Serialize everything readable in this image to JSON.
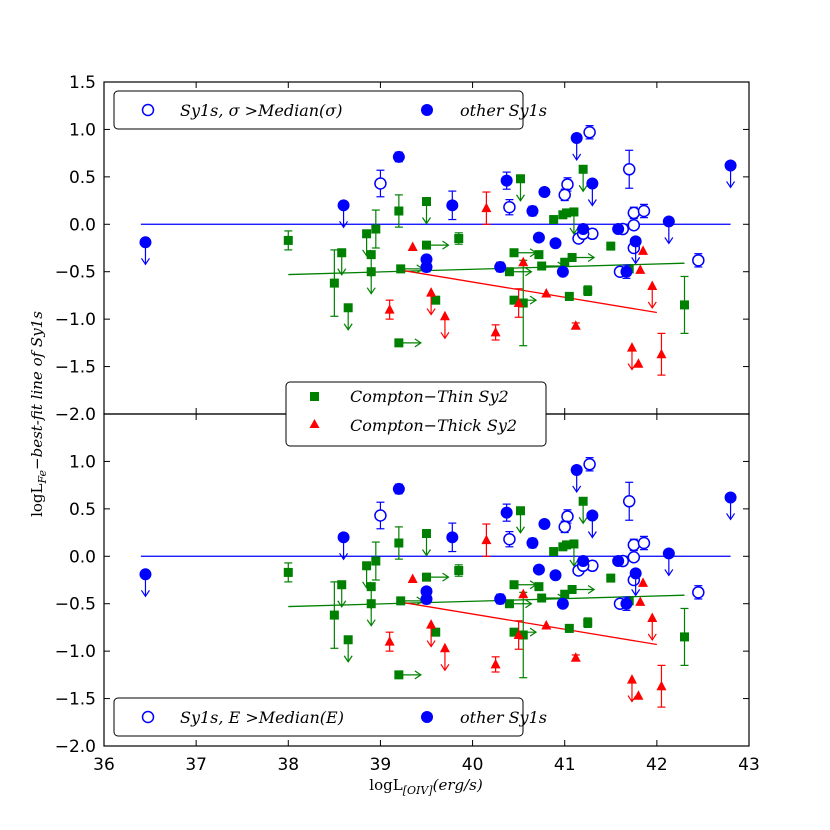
{
  "chart_data": [
    {
      "panel": "top",
      "type": "scatter",
      "xlim": [
        36,
        43
      ],
      "ylim": [
        -2.0,
        1.5
      ],
      "y_ticks": [
        "1.5",
        "1.0",
        "0.5",
        "0.0",
        "−0.5",
        "−1.0",
        "−1.5",
        "−2.0"
      ],
      "y_tick_values": [
        1.5,
        1.0,
        0.5,
        0.0,
        -0.5,
        -1.0,
        -1.5,
        -2.0
      ],
      "legend": [
        {
          "series": "sy1_high",
          "label": "Sy1s, σ >Median(σ)"
        },
        {
          "series": "sy1_other",
          "label": "other Sy1s"
        }
      ],
      "legend_placement": "upper-left",
      "lines": [
        {
          "name": "Sy1 zero line",
          "color": "#0000ff",
          "x": [
            36.4,
            42.8
          ],
          "y": [
            0.0,
            0.0
          ]
        },
        {
          "name": "Compton-Thin fit",
          "color": "#008000",
          "x": [
            38.0,
            42.3
          ],
          "y": [
            -0.53,
            -0.41
          ]
        },
        {
          "name": "Compton-Thick fit",
          "color": "#ff0000",
          "x": [
            39.2,
            42.0
          ],
          "y": [
            -0.48,
            -0.93
          ]
        }
      ],
      "series": {
        "sy1_high": {
          "name": "Sy1s, σ >Median(σ)",
          "marker": "open-circle",
          "color": "#0000ff",
          "points": [
            {
              "x": 39.0,
              "y": 0.43,
              "err": 0.14
            },
            {
              "x": 40.4,
              "y": 0.18,
              "err": 0.08
            },
            {
              "x": 41.03,
              "y": 0.42,
              "err": 0.07
            },
            {
              "x": 41.27,
              "y": 0.97,
              "err": 0.07
            },
            {
              "x": 41.3,
              "y": -0.1,
              "err": 0.05
            },
            {
              "x": 41.15,
              "y": -0.15,
              "err": 0.0
            },
            {
              "x": 41.7,
              "y": 0.58,
              "err": 0.2
            },
            {
              "x": 41.75,
              "y": 0.12,
              "err": 0.06
            },
            {
              "x": 41.86,
              "y": 0.14,
              "err": 0.07
            },
            {
              "x": 41.75,
              "y": -0.25,
              "err": 0.0
            },
            {
              "x": 41.63,
              "y": -0.05,
              "err": 0.0
            },
            {
              "x": 41.0,
              "y": 0.31,
              "err": 0.06
            },
            {
              "x": 42.45,
              "y": -0.38,
              "err": 0.07
            },
            {
              "x": 41.2,
              "y": -0.1,
              "err": 0.0
            },
            {
              "x": 41.75,
              "y": -0.01,
              "err": 0.0
            },
            {
              "x": 41.6,
              "y": -0.5,
              "err": 0.0
            }
          ]
        },
        "sy1_other": {
          "name": "other Sy1s",
          "marker": "filled-circle",
          "color": "#0000ff",
          "points": [
            {
              "x": 36.45,
              "y": -0.19,
              "ul": true
            },
            {
              "x": 38.6,
              "y": 0.2,
              "ul": true
            },
            {
              "x": 39.2,
              "y": 0.71,
              "err": 0.05
            },
            {
              "x": 39.5,
              "y": -0.37,
              "err": 0.0
            },
            {
              "x": 39.5,
              "y": -0.45,
              "err": 0.05
            },
            {
              "x": 39.78,
              "y": 0.2,
              "err": 0.15
            },
            {
              "x": 40.3,
              "y": -0.45,
              "err": 0.05
            },
            {
              "x": 40.37,
              "y": 0.46,
              "err": 0.09
            },
            {
              "x": 40.65,
              "y": 0.14,
              "err": 0.05
            },
            {
              "x": 40.78,
              "y": 0.34,
              "err": 0.0
            },
            {
              "x": 40.72,
              "y": -0.14,
              "err": 0.0
            },
            {
              "x": 40.9,
              "y": -0.2,
              "err": 0.0
            },
            {
              "x": 40.98,
              "y": -0.5,
              "err": 0.0
            },
            {
              "x": 41.13,
              "y": 0.91,
              "ul": true
            },
            {
              "x": 41.2,
              "y": -0.05,
              "err": 0.0
            },
            {
              "x": 41.3,
              "y": 0.43,
              "ul": true
            },
            {
              "x": 41.58,
              "y": -0.05,
              "err": 0.0
            },
            {
              "x": 41.67,
              "y": -0.5,
              "err": 0.07
            },
            {
              "x": 41.77,
              "y": -0.18,
              "ul": true
            },
            {
              "x": 42.13,
              "y": 0.03,
              "ul": true
            },
            {
              "x": 42.8,
              "y": 0.62,
              "ul": true
            }
          ]
        },
        "thin_sy2": {
          "name": "Compton-Thin Sy2",
          "marker": "square",
          "color": "#008000",
          "points": [
            {
              "x": 38.0,
              "y": -0.17,
              "err": 0.1
            },
            {
              "x": 38.5,
              "y": -0.62,
              "err": 0.35
            },
            {
              "x": 38.58,
              "y": -0.3,
              "ul": true
            },
            {
              "x": 38.65,
              "y": -0.88,
              "ul": true
            },
            {
              "x": 38.85,
              "y": -0.1,
              "ul": true
            },
            {
              "x": 38.9,
              "y": -0.32,
              "ul": true
            },
            {
              "x": 38.9,
              "y": -0.5,
              "ul": true
            },
            {
              "x": 38.95,
              "y": -0.05,
              "err": 0.2
            },
            {
              "x": 39.2,
              "y": 0.14,
              "err": 0.17
            },
            {
              "x": 39.22,
              "y": -0.47,
              "rl": true
            },
            {
              "x": 39.2,
              "y": -1.25,
              "rl": true
            },
            {
              "x": 39.5,
              "y": 0.24,
              "ul": true
            },
            {
              "x": 39.5,
              "y": -0.22,
              "rl": true
            },
            {
              "x": 39.6,
              "y": -0.8,
              "err": 0.0
            },
            {
              "x": 39.85,
              "y": -0.15,
              "err": 0.06
            },
            {
              "x": 40.4,
              "y": -0.5,
              "rl": true
            },
            {
              "x": 40.45,
              "y": -0.3,
              "rl": true
            },
            {
              "x": 40.52,
              "y": 0.48,
              "ul": true
            },
            {
              "x": 40.55,
              "y": -0.83,
              "err": 0.45
            },
            {
              "x": 40.45,
              "y": -0.8,
              "rl": true
            },
            {
              "x": 40.72,
              "y": -0.32,
              "err": 0.0
            },
            {
              "x": 40.75,
              "y": -0.44,
              "rl": true
            },
            {
              "x": 40.88,
              "y": 0.05,
              "err": 0.0
            },
            {
              "x": 40.98,
              "y": 0.1,
              "err": 0.0
            },
            {
              "x": 41.0,
              "y": -0.4,
              "err": 0.0
            },
            {
              "x": 41.02,
              "y": 0.12,
              "err": 0.0
            },
            {
              "x": 41.1,
              "y": 0.13,
              "ul": true
            },
            {
              "x": 41.08,
              "y": -0.35,
              "rl": true
            },
            {
              "x": 41.05,
              "y": -0.76,
              "err": 0.04
            },
            {
              "x": 41.2,
              "y": 0.58,
              "ul": true
            },
            {
              "x": 41.25,
              "y": -0.7,
              "err": 0.05
            },
            {
              "x": 41.5,
              "y": -0.23,
              "err": 0.0
            },
            {
              "x": 41.7,
              "y": -0.47,
              "err": 0.0
            },
            {
              "x": 42.3,
              "y": -0.85,
              "err": 0.3
            }
          ]
        },
        "thick_sy2": {
          "name": "Compton-Thick Sy2",
          "marker": "triangle",
          "color": "#ff0000",
          "points": [
            {
              "x": 39.1,
              "y": -0.9,
              "err": 0.1
            },
            {
              "x": 39.35,
              "y": -0.24,
              "err": 0.0
            },
            {
              "x": 39.55,
              "y": -0.72,
              "ul": true
            },
            {
              "x": 39.7,
              "y": -0.97,
              "ul": true
            },
            {
              "x": 40.15,
              "y": 0.17,
              "err": 0.17
            },
            {
              "x": 40.25,
              "y": -1.14,
              "err": 0.08
            },
            {
              "x": 40.5,
              "y": -0.83,
              "err": 0.15
            },
            {
              "x": 40.55,
              "y": -0.4,
              "err": 0.0
            },
            {
              "x": 40.8,
              "y": -0.73,
              "err": 0.0
            },
            {
              "x": 41.12,
              "y": -1.07,
              "err": 0.03
            },
            {
              "x": 41.82,
              "y": -0.48,
              "err": 0.0
            },
            {
              "x": 41.85,
              "y": -0.28,
              "err": 0.0
            },
            {
              "x": 41.73,
              "y": -1.3,
              "ul": true
            },
            {
              "x": 41.8,
              "y": -1.47,
              "err": 0.0
            },
            {
              "x": 41.95,
              "y": -0.65,
              "ul": true
            },
            {
              "x": 42.05,
              "y": -1.37,
              "err": 0.22
            }
          ]
        }
      }
    },
    {
      "panel": "bottom",
      "type": "scatter",
      "xlim": [
        36,
        43
      ],
      "ylim": [
        -2.0,
        1.5
      ],
      "y_ticks": [
        "1.0",
        "0.5",
        "0.0",
        "−0.5",
        "−1.0",
        "−1.5",
        "−2.0"
      ],
      "y_tick_values": [
        1.0,
        0.5,
        0.0,
        -0.5,
        -1.0,
        -1.5,
        -2.0
      ],
      "x_ticks": [
        "36",
        "37",
        "38",
        "39",
        "40",
        "41",
        "42",
        "43"
      ],
      "x_tick_values": [
        36,
        37,
        38,
        39,
        40,
        41,
        42,
        43
      ],
      "legend": [
        {
          "series": "thin_sy2",
          "label": "Compton−Thin  Sy2"
        },
        {
          "series": "thick_sy2",
          "label": "Compton−Thick Sy2"
        },
        {
          "series": "sy1_high",
          "label": "Sy1s, E >Median(E)"
        },
        {
          "series": "sy1_other",
          "label": "other Sy1s"
        }
      ]
    }
  ],
  "axes": {
    "xlabel": "logL[OIV](erg/s)",
    "xlabel_main": "logL",
    "xlabel_sub": "[OIV]",
    "xlabel_tail": "(erg/s)",
    "ylabel_main": "logL",
    "ylabel_sub": "Fe",
    "ylabel_tail": "−best-fit line of Sy1s"
  }
}
